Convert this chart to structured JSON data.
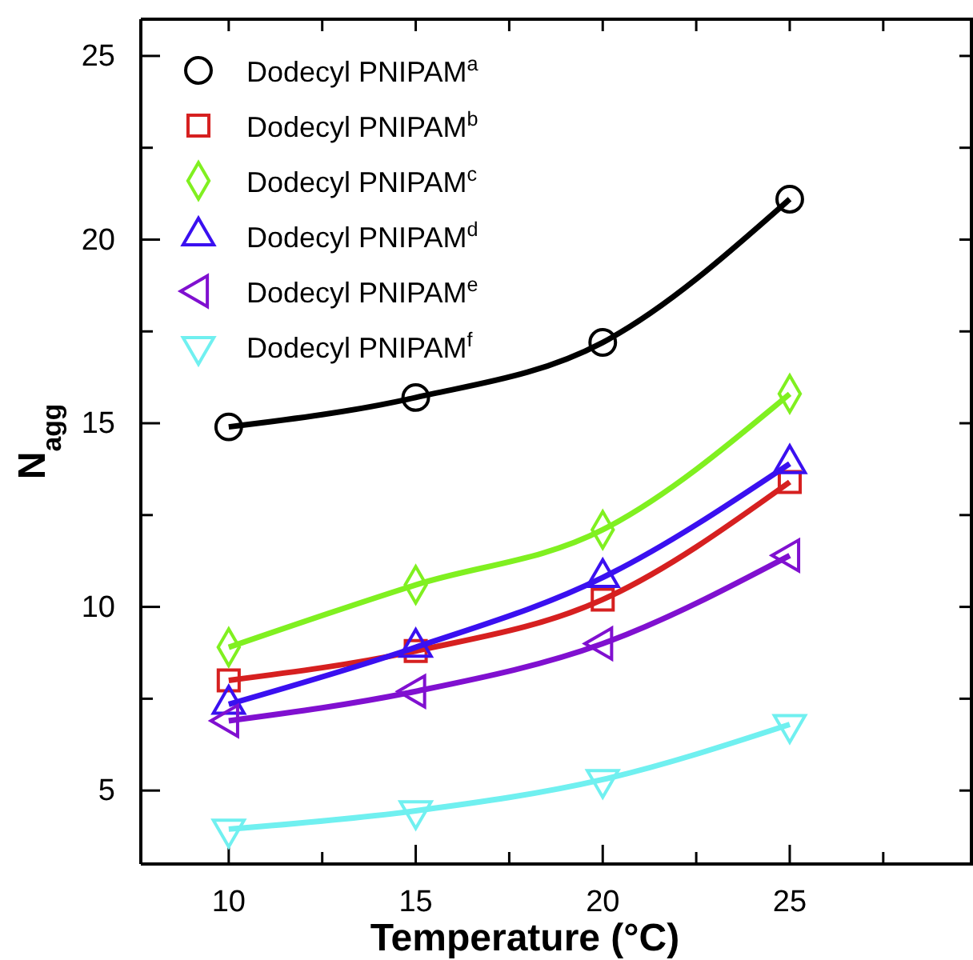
{
  "chart_data": {
    "type": "line",
    "xlabel": "Temperature (°C)",
    "ylabel": "N$_{agg}$",
    "x": [
      10,
      15,
      20,
      25
    ],
    "xlim": [
      7.65,
      29.9
    ],
    "ylim": [
      3,
      26
    ],
    "xticks": [
      10,
      {
        "value": 12.5,
        "label": null
      },
      15,
      {
        "value": 17.5,
        "label": null
      },
      20,
      {
        "value": 22.5,
        "label": null
      },
      25,
      {
        "value": 27.5,
        "label": null
      }
    ],
    "yticks": [
      5,
      {
        "value": 7.5,
        "label": null
      },
      10,
      {
        "value": 12.5,
        "label": null
      },
      15,
      {
        "value": 17.5,
        "label": null
      },
      20,
      {
        "value": 22.5,
        "label": null
      },
      25
    ],
    "legend": "top left",
    "grid": false,
    "line_style": "solid",
    "series": [
      {
        "name": "Dodecyl PNIPAM$^{a}$",
        "color": "#000000",
        "marker": "circle",
        "values": [
          14.9,
          15.7,
          17.2,
          21.1
        ]
      },
      {
        "name": "Dodecyl PNIPAM$^{b}$",
        "color": "#d62020",
        "marker": "square",
        "values": [
          8.0,
          8.8,
          10.2,
          13.4
        ]
      },
      {
        "name": "Dodecyl PNIPAM$^{c}$",
        "color": "#80f020",
        "marker": "diamond",
        "values": [
          8.9,
          10.6,
          12.1,
          15.8
        ]
      },
      {
        "name": "Dodecyl PNIPAM$^{d}$",
        "color": "#3a10f0",
        "marker": "triangle",
        "values": [
          7.35,
          8.9,
          10.8,
          13.9
        ]
      },
      {
        "name": "Dodecyl PNIPAM$^{e}$",
        "color": "#8010d0",
        "marker": "triangle-left",
        "values": [
          6.9,
          7.7,
          9.0,
          11.4
        ]
      },
      {
        "name": "Dodecyl PNIPAM$^{f}$",
        "color": "#70f0f0",
        "marker": "triangle-down",
        "values": [
          3.95,
          4.45,
          5.3,
          6.8
        ]
      }
    ]
  }
}
